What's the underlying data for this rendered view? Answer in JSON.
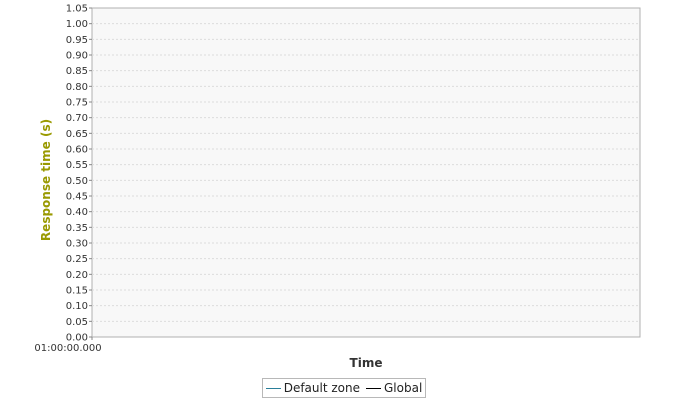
{
  "chart_data": {
    "type": "line",
    "title": "",
    "xlabel": "Time",
    "ylabel": "Response time (s)",
    "ylim": [
      0,
      1.05
    ],
    "yticks": [
      "0.00",
      "0.05",
      "0.10",
      "0.15",
      "0.20",
      "0.25",
      "0.30",
      "0.35",
      "0.40",
      "0.45",
      "0.50",
      "0.55",
      "0.60",
      "0.65",
      "0.70",
      "0.75",
      "0.80",
      "0.85",
      "0.90",
      "0.95",
      "1.00",
      "1.05"
    ],
    "xticks": [
      "01:00:00.000"
    ],
    "grid": true,
    "legend_position": "bottom",
    "series": [
      {
        "name": "Default zone",
        "color": "#2a7f9a",
        "values": []
      },
      {
        "name": "Global",
        "color": "#000000",
        "values": []
      }
    ],
    "colors": {
      "ylabel": "#999900",
      "plot_background": "#f8f8f8",
      "grid": "#dcdcdc",
      "border": "#b0b0b0"
    }
  }
}
